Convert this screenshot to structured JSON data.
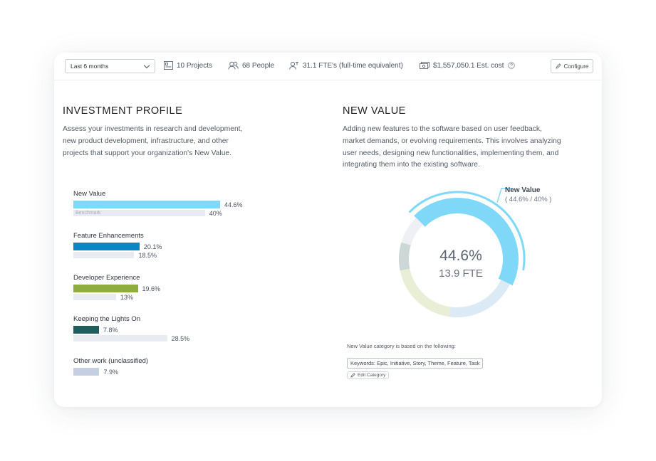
{
  "toolbar": {
    "period": "Last 6 months",
    "projects": "10 Projects",
    "people": "68 People",
    "fte": "31.1 FTE's (full-time equivalent)",
    "cost": "$1,557,050.1 Est. cost",
    "configure": "Configure"
  },
  "investment": {
    "title": "INVESTMENT PROFILE",
    "description_lines": [
      "Assess your investments in research and development,",
      "new product development, infrastructure, and other",
      "projects that support your organization's New Value."
    ],
    "benchmark_label": "Benchmark",
    "categories": [
      {
        "label": "New Value",
        "value": 44.6,
        "value_label": "44.6%",
        "benchmark": 40,
        "benchmark_label": "40%",
        "color": "#7fd8f8"
      },
      {
        "label": "Feature Enhancements",
        "value": 20.1,
        "value_label": "20.1%",
        "benchmark": 18.5,
        "benchmark_label": "18.5%",
        "color": "#0a86c6"
      },
      {
        "label": "Developer Experience",
        "value": 19.6,
        "value_label": "19.6%",
        "benchmark": 13,
        "benchmark_label": "13%",
        "color": "#8fad3f"
      },
      {
        "label": "Keeping the Lights On",
        "value": 7.8,
        "value_label": "7.8%",
        "benchmark": 28.5,
        "benchmark_label": "28.5%",
        "color": "#1f5e5d"
      },
      {
        "label": "Other work (unclassified)",
        "value": 7.9,
        "value_label": "7.9%",
        "benchmark": null,
        "benchmark_label": "",
        "color": "#c6cfe2"
      }
    ]
  },
  "new_value": {
    "title": "NEW VALUE",
    "description_lines": [
      "Adding new features to the software based on user feedback,",
      "market demands, or evolving requirements. This involves analyzing",
      "user needs, designing new functionalities, implementing them, and",
      "integrating them into the existing software."
    ],
    "callout_title": "New Value",
    "callout_sub": "( 44.6% / 40% )",
    "center_value": "44.6%",
    "center_fte": "13.9 FTE",
    "based_on": "New Value category is based on the following:",
    "keywords": "Keywords: Epic, Initiative, Story, Theme, Feature, Task",
    "edit_label": "Edit Category"
  },
  "chart_data": {
    "type": "donut",
    "highlighted": "New Value",
    "benchmark": 40,
    "series": [
      {
        "name": "New Value",
        "value": 44.6,
        "color": "#7fd8f8"
      },
      {
        "name": "Feature Enhancements",
        "value": 20.1,
        "color": "#dbeaf4"
      },
      {
        "name": "Developer Experience",
        "value": 19.6,
        "color": "#e9efd6"
      },
      {
        "name": "Keeping the Lights On",
        "value": 7.8,
        "color": "#ccd7d6"
      },
      {
        "name": "Other work (unclassified)",
        "value": 7.9,
        "color": "#eef0f5"
      }
    ]
  }
}
